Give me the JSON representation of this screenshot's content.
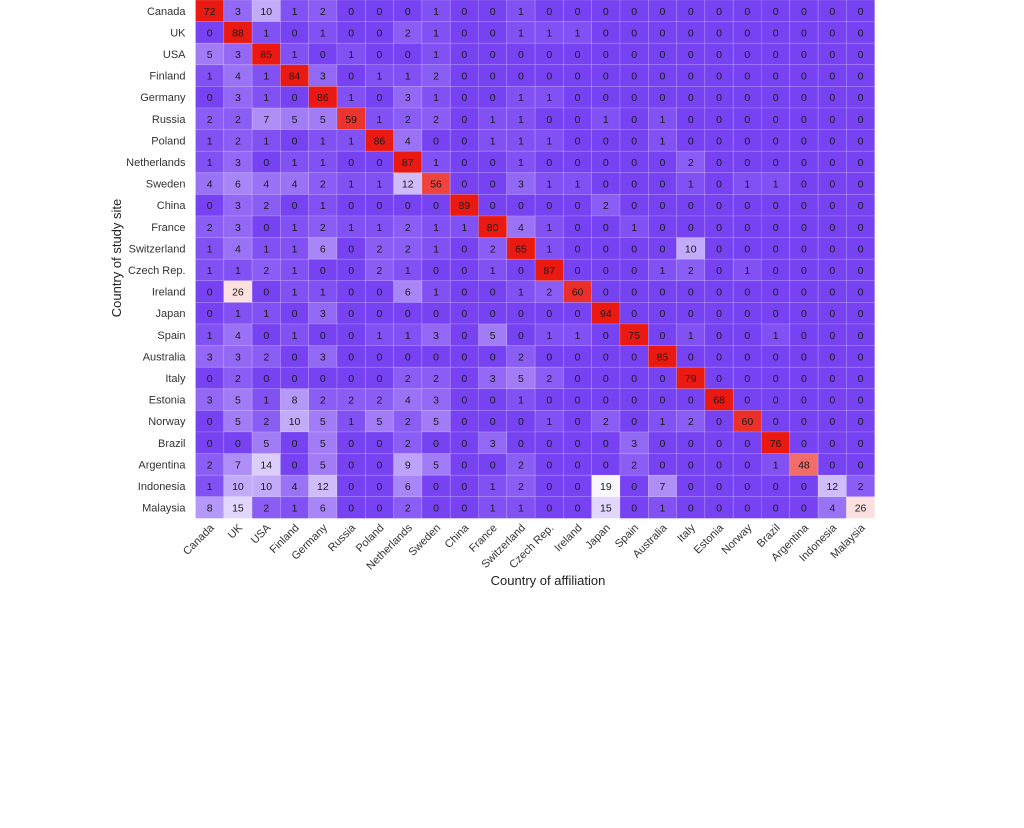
{
  "chart_data": {
    "type": "heatmap",
    "xlabel": "Country of affiliation",
    "ylabel": "Country of study site",
    "x_categories": [
      "Canada",
      "UK",
      "USA",
      "Finland",
      "Germany",
      "Russia",
      "Poland",
      "Netherlands",
      "Sweden",
      "China",
      "France",
      "Switzerland",
      "Czech Rep.",
      "Ireland",
      "Japan",
      "Spain",
      "Australia",
      "Italy",
      "Estonia",
      "Norway",
      "Brazil",
      "Argentina",
      "Indonesia",
      "Malaysia"
    ],
    "y_categories": [
      "Canada",
      "UK",
      "USA",
      "Finland",
      "Germany",
      "Russia",
      "Poland",
      "Netherlands",
      "Sweden",
      "China",
      "France",
      "Switzerland",
      "Czech Rep.",
      "Ireland",
      "Japan",
      "Spain",
      "Australia",
      "Italy",
      "Estonia",
      "Norway",
      "Brazil",
      "Argentina",
      "Indonesia",
      "Malaysia"
    ],
    "values": [
      [
        72,
        3,
        10,
        1,
        2,
        0,
        0,
        0,
        1,
        0,
        0,
        1,
        0,
        0,
        0,
        0,
        0,
        0,
        0,
        0,
        0,
        0,
        0,
        0
      ],
      [
        0,
        88,
        1,
        0,
        1,
        0,
        0,
        2,
        1,
        0,
        0,
        1,
        1,
        1,
        0,
        0,
        0,
        0,
        0,
        0,
        0,
        0,
        0,
        0
      ],
      [
        5,
        3,
        85,
        1,
        0,
        1,
        0,
        0,
        1,
        0,
        0,
        0,
        0,
        0,
        0,
        0,
        0,
        0,
        0,
        0,
        0,
        0,
        0,
        0
      ],
      [
        1,
        4,
        1,
        84,
        3,
        0,
        1,
        1,
        2,
        0,
        0,
        0,
        0,
        0,
        0,
        0,
        0,
        0,
        0,
        0,
        0,
        0,
        0,
        0
      ],
      [
        0,
        3,
        1,
        0,
        86,
        1,
        0,
        3,
        1,
        0,
        0,
        1,
        1,
        0,
        0,
        0,
        0,
        0,
        0,
        0,
        0,
        0,
        0,
        0
      ],
      [
        2,
        2,
        7,
        5,
        5,
        59,
        1,
        2,
        2,
        0,
        1,
        1,
        0,
        0,
        1,
        0,
        1,
        0,
        0,
        0,
        0,
        0,
        0,
        0
      ],
      [
        1,
        2,
        1,
        0,
        1,
        1,
        86,
        4,
        0,
        0,
        1,
        1,
        1,
        0,
        0,
        0,
        1,
        0,
        0,
        0,
        0,
        0,
        0,
        0
      ],
      [
        1,
        3,
        0,
        1,
        1,
        0,
        0,
        87,
        1,
        0,
        0,
        1,
        0,
        0,
        0,
        0,
        0,
        2,
        0,
        0,
        0,
        0,
        0,
        0
      ],
      [
        4,
        6,
        4,
        4,
        2,
        1,
        1,
        12,
        56,
        0,
        0,
        3,
        1,
        1,
        0,
        0,
        0,
        1,
        0,
        1,
        1,
        0,
        0,
        0
      ],
      [
        0,
        3,
        2,
        0,
        1,
        0,
        0,
        0,
        0,
        89,
        0,
        0,
        0,
        0,
        2,
        0,
        0,
        0,
        0,
        0,
        0,
        0,
        0,
        0
      ],
      [
        2,
        3,
        0,
        1,
        2,
        1,
        1,
        2,
        1,
        1,
        80,
        4,
        1,
        0,
        0,
        1,
        0,
        0,
        0,
        0,
        0,
        0,
        0,
        0
      ],
      [
        1,
        4,
        1,
        1,
        6,
        0,
        2,
        2,
        1,
        0,
        2,
        65,
        1,
        0,
        0,
        0,
        0,
        10,
        0,
        0,
        0,
        0,
        0,
        0
      ],
      [
        1,
        1,
        2,
        1,
        0,
        0,
        2,
        1,
        0,
        0,
        1,
        0,
        87,
        0,
        0,
        0,
        1,
        2,
        0,
        1,
        0,
        0,
        0,
        0
      ],
      [
        0,
        26,
        0,
        1,
        1,
        0,
        0,
        6,
        1,
        0,
        0,
        1,
        2,
        60,
        0,
        0,
        0,
        0,
        0,
        0,
        0,
        0,
        0,
        0
      ],
      [
        0,
        1,
        1,
        0,
        3,
        0,
        0,
        0,
        0,
        0,
        0,
        0,
        0,
        0,
        94,
        0,
        0,
        0,
        0,
        0,
        0,
        0,
        0,
        0
      ],
      [
        1,
        4,
        0,
        1,
        0,
        0,
        1,
        1,
        3,
        0,
        5,
        0,
        1,
        1,
        0,
        75,
        0,
        1,
        0,
        0,
        1,
        0,
        0,
        0
      ],
      [
        3,
        3,
        2,
        0,
        3,
        0,
        0,
        0,
        0,
        0,
        0,
        2,
        0,
        0,
        0,
        0,
        85,
        0,
        0,
        0,
        0,
        0,
        0,
        0
      ],
      [
        0,
        2,
        0,
        0,
        0,
        0,
        0,
        2,
        2,
        0,
        3,
        5,
        2,
        0,
        0,
        0,
        0,
        79,
        0,
        0,
        0,
        0,
        0,
        0
      ],
      [
        3,
        5,
        1,
        8,
        2,
        2,
        2,
        4,
        3,
        0,
        0,
        1,
        0,
        0,
        0,
        0,
        0,
        0,
        68,
        0,
        0,
        0,
        0,
        0
      ],
      [
        0,
        5,
        2,
        10,
        5,
        1,
        5,
        2,
        5,
        0,
        0,
        0,
        1,
        0,
        2,
        0,
        1,
        2,
        0,
        60,
        0,
        0,
        0,
        0
      ],
      [
        0,
        0,
        5,
        0,
        5,
        0,
        0,
        2,
        0,
        0,
        3,
        0,
        0,
        0,
        0,
        3,
        0,
        0,
        0,
        0,
        76,
        0,
        0,
        0
      ],
      [
        2,
        7,
        14,
        0,
        5,
        0,
        0,
        9,
        5,
        0,
        0,
        2,
        0,
        0,
        0,
        2,
        0,
        0,
        0,
        0,
        1,
        48,
        0,
        0
      ],
      [
        1,
        10,
        10,
        4,
        12,
        0,
        0,
        6,
        0,
        0,
        1,
        2,
        0,
        0,
        19,
        0,
        7,
        0,
        0,
        0,
        0,
        0,
        12,
        2
      ],
      [
        8,
        15,
        2,
        1,
        6,
        0,
        0,
        2,
        0,
        0,
        1,
        1,
        0,
        0,
        15,
        0,
        1,
        0,
        0,
        0,
        0,
        0,
        4,
        26
      ]
    ],
    "colors": {
      "low": "#7742f2",
      "mid": "#ffffff",
      "high": "#ea1a12"
    },
    "grid": true,
    "legend": "none"
  }
}
